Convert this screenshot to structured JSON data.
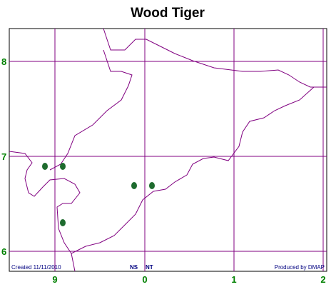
{
  "header": {
    "title": "Wood Tiger"
  },
  "axes": {
    "left": [
      "8",
      "7",
      "6"
    ],
    "bottom": [
      "9",
      "0",
      "1",
      "2"
    ]
  },
  "footer": {
    "created": "Created 11/11/2010",
    "regions": [
      "NS",
      "NT"
    ],
    "producer": "Produced by DMAP"
  }
}
